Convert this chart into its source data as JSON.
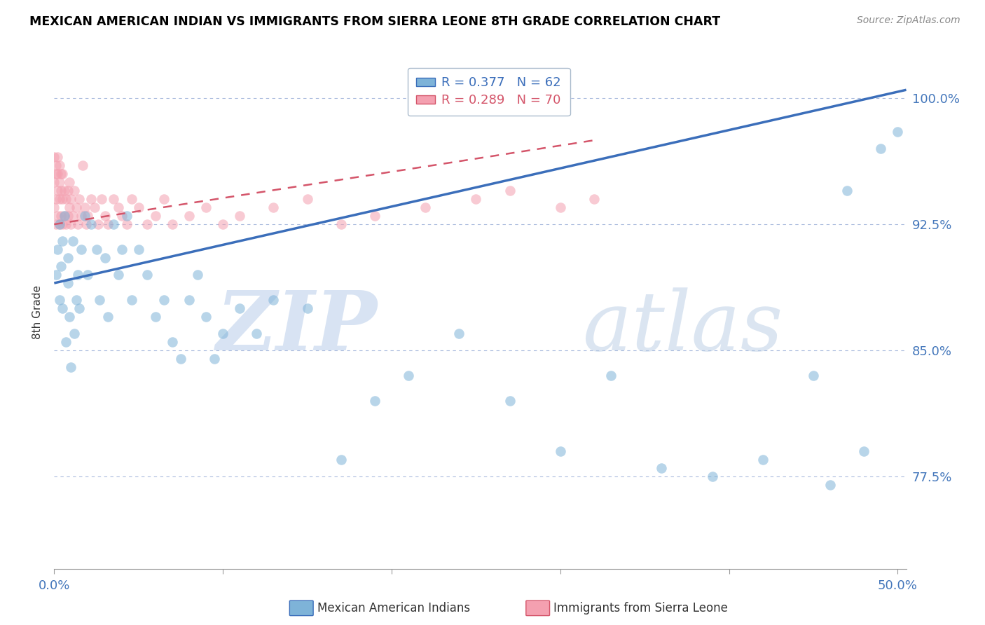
{
  "title": "MEXICAN AMERICAN INDIAN VS IMMIGRANTS FROM SIERRA LEONE 8TH GRADE CORRELATION CHART",
  "source": "Source: ZipAtlas.com",
  "ylabel": "8th Grade",
  "y_ticks": [
    0.775,
    0.85,
    0.925,
    1.0
  ],
  "y_tick_labels": [
    "77.5%",
    "85.0%",
    "92.5%",
    "100.0%"
  ],
  "y_min": 0.72,
  "y_max": 1.025,
  "x_min": 0.0,
  "x_max": 0.505,
  "blue_R": 0.377,
  "blue_N": 62,
  "pink_R": 0.289,
  "pink_N": 70,
  "blue_color": "#7EB3D8",
  "pink_color": "#F4A0B0",
  "blue_line_color": "#3B6EBA",
  "pink_line_color": "#D4556A",
  "watermark_zip": "ZIP",
  "watermark_atlas": "atlas",
  "legend_blue": "Mexican American Indians",
  "legend_pink": "Immigrants from Sierra Leone",
  "blue_x": [
    0.001,
    0.002,
    0.003,
    0.003,
    0.004,
    0.005,
    0.005,
    0.006,
    0.007,
    0.008,
    0.008,
    0.009,
    0.01,
    0.011,
    0.012,
    0.013,
    0.014,
    0.015,
    0.016,
    0.018,
    0.02,
    0.022,
    0.025,
    0.027,
    0.03,
    0.032,
    0.035,
    0.038,
    0.04,
    0.043,
    0.046,
    0.05,
    0.055,
    0.06,
    0.065,
    0.07,
    0.075,
    0.08,
    0.085,
    0.09,
    0.095,
    0.1,
    0.11,
    0.12,
    0.13,
    0.15,
    0.17,
    0.19,
    0.21,
    0.24,
    0.27,
    0.3,
    0.33,
    0.36,
    0.39,
    0.42,
    0.45,
    0.47,
    0.49,
    0.5,
    0.48,
    0.46
  ],
  "blue_y": [
    0.895,
    0.91,
    0.88,
    0.925,
    0.9,
    0.915,
    0.875,
    0.93,
    0.855,
    0.89,
    0.905,
    0.87,
    0.84,
    0.915,
    0.86,
    0.88,
    0.895,
    0.875,
    0.91,
    0.93,
    0.895,
    0.925,
    0.91,
    0.88,
    0.905,
    0.87,
    0.925,
    0.895,
    0.91,
    0.93,
    0.88,
    0.91,
    0.895,
    0.87,
    0.88,
    0.855,
    0.845,
    0.88,
    0.895,
    0.87,
    0.845,
    0.86,
    0.875,
    0.86,
    0.88,
    0.875,
    0.785,
    0.82,
    0.835,
    0.86,
    0.82,
    0.79,
    0.835,
    0.78,
    0.775,
    0.785,
    0.835,
    0.945,
    0.97,
    0.98,
    0.79,
    0.77
  ],
  "pink_x": [
    0.0,
    0.0,
    0.0,
    0.001,
    0.001,
    0.001,
    0.001,
    0.002,
    0.002,
    0.002,
    0.002,
    0.003,
    0.003,
    0.003,
    0.003,
    0.004,
    0.004,
    0.004,
    0.005,
    0.005,
    0.005,
    0.006,
    0.006,
    0.007,
    0.007,
    0.008,
    0.008,
    0.009,
    0.009,
    0.01,
    0.01,
    0.011,
    0.012,
    0.013,
    0.014,
    0.015,
    0.016,
    0.017,
    0.018,
    0.019,
    0.02,
    0.022,
    0.024,
    0.026,
    0.028,
    0.03,
    0.032,
    0.035,
    0.038,
    0.04,
    0.043,
    0.046,
    0.05,
    0.055,
    0.06,
    0.065,
    0.07,
    0.08,
    0.09,
    0.1,
    0.11,
    0.13,
    0.15,
    0.17,
    0.19,
    0.22,
    0.25,
    0.27,
    0.3,
    0.32
  ],
  "pink_y": [
    0.935,
    0.95,
    0.965,
    0.925,
    0.94,
    0.955,
    0.96,
    0.93,
    0.945,
    0.955,
    0.965,
    0.925,
    0.94,
    0.95,
    0.96,
    0.93,
    0.945,
    0.955,
    0.925,
    0.94,
    0.955,
    0.93,
    0.945,
    0.925,
    0.94,
    0.93,
    0.945,
    0.935,
    0.95,
    0.925,
    0.94,
    0.93,
    0.945,
    0.935,
    0.925,
    0.94,
    0.93,
    0.96,
    0.935,
    0.925,
    0.93,
    0.94,
    0.935,
    0.925,
    0.94,
    0.93,
    0.925,
    0.94,
    0.935,
    0.93,
    0.925,
    0.94,
    0.935,
    0.925,
    0.93,
    0.94,
    0.925,
    0.93,
    0.935,
    0.925,
    0.93,
    0.935,
    0.94,
    0.925,
    0.93,
    0.935,
    0.94,
    0.945,
    0.935,
    0.94
  ],
  "blue_line_x0": 0.0,
  "blue_line_x1": 0.505,
  "blue_line_y0": 0.89,
  "blue_line_y1": 1.005,
  "pink_line_x0": 0.0,
  "pink_line_x1": 0.32,
  "pink_line_y0": 0.925,
  "pink_line_y1": 0.975
}
